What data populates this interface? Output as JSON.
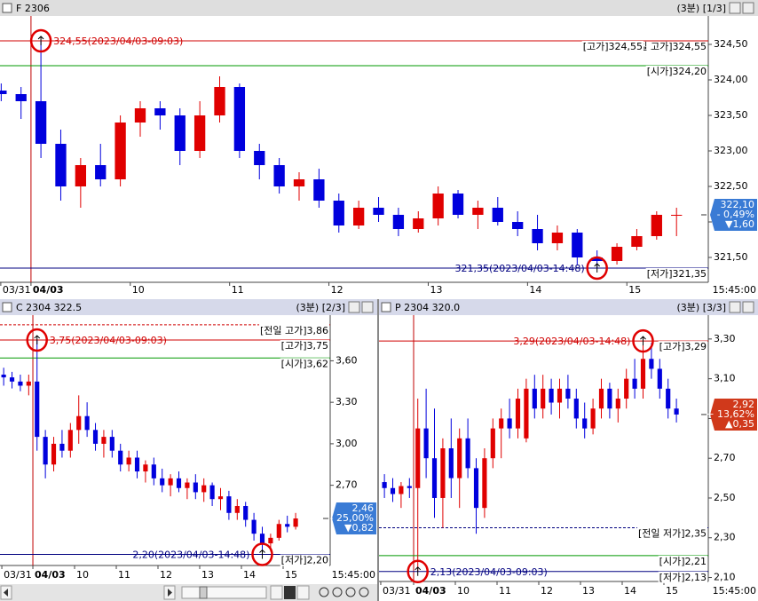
{
  "chart_data": [
    {
      "type": "candlestick",
      "title": "F 2306",
      "subtitle": "(3분) [1/3]",
      "up_color": "#e00000",
      "down_color": "#0000dd",
      "open": [
        323.85,
        323.8,
        323.7,
        323.1,
        322.5,
        322.8,
        322.6,
        323.4,
        323.6,
        323.5,
        323.0,
        323.5,
        323.9,
        323.0,
        322.8,
        322.5,
        322.6,
        322.3,
        321.95,
        322.2,
        322.1,
        321.9,
        322.05,
        322.4,
        322.1,
        322.2,
        322.0,
        321.9,
        321.7,
        321.85,
        321.5,
        321.45,
        321.65,
        321.8,
        322.1
      ],
      "high": [
        323.95,
        323.9,
        324.55,
        323.3,
        322.9,
        323.1,
        323.5,
        323.7,
        323.7,
        323.6,
        323.7,
        324.05,
        323.95,
        323.1,
        322.9,
        322.7,
        322.75,
        322.4,
        322.3,
        322.35,
        322.2,
        322.15,
        322.5,
        322.45,
        322.3,
        322.35,
        322.15,
        322.1,
        321.95,
        321.9,
        321.6,
        321.7,
        321.9,
        322.15,
        322.2
      ],
      "low": [
        323.7,
        323.45,
        322.9,
        322.3,
        322.2,
        322.5,
        322.5,
        323.2,
        323.3,
        322.8,
        322.9,
        323.4,
        322.9,
        322.6,
        322.4,
        322.3,
        322.2,
        321.85,
        321.9,
        322.0,
        321.8,
        321.85,
        321.95,
        322.05,
        321.9,
        321.95,
        321.8,
        321.6,
        321.6,
        321.4,
        321.35,
        321.4,
        321.6,
        321.75,
        321.8
      ],
      "close": [
        323.8,
        323.7,
        323.1,
        322.5,
        322.8,
        322.6,
        323.4,
        323.6,
        323.5,
        323.0,
        323.5,
        323.9,
        323.0,
        322.8,
        322.5,
        322.6,
        322.3,
        321.95,
        322.2,
        322.1,
        321.9,
        322.05,
        322.4,
        322.1,
        322.2,
        322.0,
        321.9,
        321.7,
        321.85,
        321.5,
        321.45,
        321.65,
        321.8,
        322.1,
        322.1
      ],
      "xlim": [
        -0.06,
        35.6
      ],
      "ylim": [
        321.15,
        324.9
      ],
      "xticks": [
        {
          "value": -0.02,
          "label": "03/31"
        },
        {
          "value": 1.5,
          "label": "04/03"
        },
        {
          "value": 6.5,
          "label": "10"
        },
        {
          "value": 11.5,
          "label": "11"
        },
        {
          "value": 16.5,
          "label": "12"
        },
        {
          "value": 21.5,
          "label": "13"
        },
        {
          "value": 26.5,
          "label": "14"
        },
        {
          "value": 31.5,
          "label": "15"
        }
      ],
      "yticks": [
        {
          "value": 321.5,
          "label": "321,50"
        },
        {
          "value": 322,
          "label": "322,00"
        },
        {
          "value": 322.5,
          "label": "322,50"
        },
        {
          "value": 323,
          "label": "323,00"
        },
        {
          "value": 323.5,
          "label": "323,50"
        },
        {
          "value": 324,
          "label": "324,00"
        },
        {
          "value": 324.5,
          "label": "324,50"
        }
      ],
      "x_end_label": "15:45:00",
      "lines": [
        {
          "label": "[전일 고가]324,55",
          "value": 324.55,
          "color": "#d00000",
          "dashed": true
        },
        {
          "label": "[고가]324,55",
          "value": 324.55,
          "color": "#d00000",
          "dashed": false
        },
        {
          "label": "[시가]324,20",
          "value": 324.2,
          "color": "#009900",
          "dashed": false
        },
        {
          "label": "[저가]321,35",
          "value": 321.35,
          "color": "#000080",
          "dashed": false
        }
      ],
      "annotations": [
        {
          "text": "324,55(2023/04/03-09:03)",
          "x": 2,
          "value": 324.55,
          "color": "#d00000"
        },
        {
          "text": "321,35(2023/04/03-14:48)",
          "x": 30,
          "value": 321.35,
          "color": "#000080"
        }
      ],
      "current": {
        "value": 322.1,
        "label": "322,10",
        "change": "- 0,49%",
        "diff": "▼1,60",
        "color": "#3a7bd5"
      }
    },
    {
      "type": "candlestick",
      "title": "C 2304 322.5",
      "subtitle": "(3분) [2/3]",
      "up_color": "#e00000",
      "down_color": "#0000dd",
      "open": [
        3.5,
        3.48,
        3.45,
        3.42,
        3.45,
        3.05,
        2.85,
        3.0,
        2.95,
        3.1,
        3.2,
        3.1,
        3.0,
        3.05,
        2.95,
        2.85,
        2.9,
        2.8,
        2.85,
        2.75,
        2.7,
        2.75,
        2.68,
        2.72,
        2.65,
        2.7,
        2.6,
        2.62,
        2.5,
        2.55,
        2.45,
        2.35,
        2.28,
        2.32,
        2.42,
        2.4
      ],
      "high": [
        3.55,
        3.52,
        3.5,
        3.5,
        3.75,
        3.1,
        3.05,
        3.1,
        3.15,
        3.35,
        3.3,
        3.15,
        3.1,
        3.1,
        3.0,
        2.95,
        2.95,
        2.88,
        2.9,
        2.82,
        2.78,
        2.8,
        2.75,
        2.78,
        2.75,
        2.72,
        2.68,
        2.66,
        2.6,
        2.58,
        2.5,
        2.4,
        2.35,
        2.45,
        2.48,
        2.5
      ],
      "low": [
        3.42,
        3.4,
        3.38,
        3.35,
        2.95,
        2.75,
        2.8,
        2.9,
        2.9,
        3.0,
        3.05,
        2.95,
        2.9,
        2.9,
        2.8,
        2.8,
        2.75,
        2.72,
        2.7,
        2.65,
        2.62,
        2.65,
        2.6,
        2.6,
        2.58,
        2.55,
        2.52,
        2.45,
        2.45,
        2.4,
        2.3,
        2.2,
        2.22,
        2.3,
        2.36,
        2.38
      ],
      "close": [
        3.48,
        3.45,
        3.42,
        3.45,
        3.05,
        2.85,
        3.0,
        2.95,
        3.1,
        3.2,
        3.1,
        3.0,
        3.05,
        2.95,
        2.85,
        2.9,
        2.8,
        2.85,
        2.75,
        2.7,
        2.75,
        2.68,
        2.72,
        2.65,
        2.7,
        2.6,
        2.62,
        2.5,
        2.55,
        2.45,
        2.35,
        2.28,
        2.32,
        2.42,
        2.4,
        2.46
      ],
      "xlim": [
        -0.44,
        39.14
      ],
      "ylim": [
        2.12,
        3.93
      ],
      "xticks": [
        {
          "value": -0.22,
          "label": "03/31"
        },
        {
          "value": 3.5,
          "label": "04/03"
        },
        {
          "value": 8.5,
          "label": "10"
        },
        {
          "value": 13.5,
          "label": "11"
        },
        {
          "value": 18.5,
          "label": "12"
        },
        {
          "value": 23.5,
          "label": "13"
        },
        {
          "value": 28.5,
          "label": "14"
        },
        {
          "value": 33.5,
          "label": "15"
        }
      ],
      "yticks": [
        {
          "value": 2.7,
          "label": "2,70"
        },
        {
          "value": 3,
          "label": "3,00"
        },
        {
          "value": 3.3,
          "label": "3,30"
        },
        {
          "value": 3.6,
          "label": "3,60"
        }
      ],
      "x_end_label": "15:45:00",
      "lines": [
        {
          "label": "[전일 고가]3,86",
          "value": 3.86,
          "color": "#d00000",
          "dashed": true
        },
        {
          "label": "[고가]3,75",
          "value": 3.75,
          "color": "#d00000",
          "dashed": false
        },
        {
          "label": "[시가]3,62",
          "value": 3.62,
          "color": "#009900",
          "dashed": false
        },
        {
          "label": "[저가]2,20",
          "value": 2.2,
          "color": "#000080",
          "dashed": false
        }
      ],
      "annotations": [
        {
          "text": "3,75(2023/04/03-09:03)",
          "x": 4,
          "value": 3.75,
          "color": "#d00000"
        },
        {
          "text": "2,20(2023/04/03-14:48)",
          "x": 31,
          "value": 2.2,
          "color": "#000080"
        }
      ],
      "current": {
        "value": 2.46,
        "label": "2,46",
        "change": "- 25,00%",
        "diff": "▼0,82",
        "color": "#3a7bd5"
      }
    },
    {
      "type": "candlestick",
      "title": "P 2304 320.0",
      "subtitle": "(3분) [3/3]",
      "up_color": "#e00000",
      "down_color": "#0000dd",
      "open": [
        2.58,
        2.55,
        2.52,
        2.56,
        2.55,
        2.85,
        2.7,
        2.5,
        2.75,
        2.6,
        2.8,
        2.65,
        2.45,
        2.7,
        2.85,
        2.9,
        2.85,
        2.8,
        3.05,
        2.95,
        3.05,
        2.98,
        3.05,
        3.0,
        2.9,
        2.85,
        2.95,
        3.05,
        2.95,
        3.0,
        3.1,
        3.05,
        3.2,
        3.15,
        3.05,
        2.95
      ],
      "high": [
        2.62,
        2.6,
        2.58,
        2.6,
        3.0,
        3.05,
        2.95,
        2.8,
        2.9,
        2.85,
        2.9,
        2.7,
        2.75,
        2.9,
        2.95,
        3.0,
        3.05,
        3.1,
        3.12,
        3.12,
        3.1,
        3.1,
        3.12,
        3.05,
        2.98,
        3.0,
        3.1,
        3.08,
        3.05,
        3.15,
        3.2,
        3.29,
        3.28,
        3.2,
        3.1,
        3.0
      ],
      "low": [
        2.5,
        2.48,
        2.45,
        2.5,
        2.13,
        2.6,
        2.4,
        2.35,
        2.5,
        2.45,
        2.6,
        2.32,
        2.4,
        2.65,
        2.7,
        2.8,
        2.8,
        2.78,
        2.9,
        2.9,
        2.92,
        2.9,
        2.95,
        2.85,
        2.8,
        2.82,
        2.9,
        2.9,
        2.88,
        2.95,
        3.0,
        3.0,
        3.1,
        3.0,
        2.9,
        2.88
      ],
      "close": [
        2.55,
        2.52,
        2.56,
        2.55,
        2.85,
        2.7,
        2.5,
        2.75,
        2.6,
        2.8,
        2.65,
        2.45,
        2.7,
        2.85,
        2.9,
        2.85,
        3.0,
        3.05,
        2.95,
        3.05,
        2.98,
        3.05,
        3.0,
        2.9,
        2.85,
        2.95,
        3.05,
        2.95,
        3.0,
        3.1,
        3.05,
        3.2,
        3.15,
        3.05,
        2.95,
        2.92
      ],
      "xlim": [
        -0.65,
        38.82
      ],
      "ylim": [
        2.08,
        3.42
      ],
      "xticks": [
        {
          "value": -0.44,
          "label": "03/31"
        },
        {
          "value": 3.5,
          "label": "04/03"
        },
        {
          "value": 8.5,
          "label": "10"
        },
        {
          "value": 13.5,
          "label": "11"
        },
        {
          "value": 18.5,
          "label": "12"
        },
        {
          "value": 23.5,
          "label": "13"
        },
        {
          "value": 28.5,
          "label": "14"
        },
        {
          "value": 33.5,
          "label": "15"
        }
      ],
      "yticks": [
        {
          "value": 2.1,
          "label": "2,10"
        },
        {
          "value": 2.3,
          "label": "2,30"
        },
        {
          "value": 2.5,
          "label": "2,50"
        },
        {
          "value": 2.7,
          "label": "2,70"
        },
        {
          "value": 2.9,
          "label": "2,90"
        },
        {
          "value": 3.1,
          "label": "3,10"
        },
        {
          "value": 3.3,
          "label": "3,30"
        }
      ],
      "x_end_label": "15:45:00",
      "lines": [
        {
          "label": "[고가]3,29",
          "value": 3.29,
          "color": "#d00000",
          "dashed": false
        },
        {
          "label": "[전일 저가]2,35",
          "value": 2.35,
          "color": "#000080",
          "dashed": true
        },
        {
          "label": "[시가]2,21",
          "value": 2.21,
          "color": "#009900",
          "dashed": false
        },
        {
          "label": "[저가]2,13",
          "value": 2.13,
          "color": "#000080",
          "dashed": false
        }
      ],
      "annotations": [
        {
          "text": "3,29(2023/04/03-14:48)",
          "x": 31,
          "value": 3.29,
          "color": "#d00000"
        },
        {
          "text": "2,13(2023/04/03-09:03)",
          "x": 4,
          "value": 2.13,
          "color": "#000080"
        }
      ],
      "current": {
        "value": 2.92,
        "label": "2,92",
        "change": "+ 13,62%",
        "diff": "▲0,35",
        "color": "#d0391b"
      }
    }
  ]
}
